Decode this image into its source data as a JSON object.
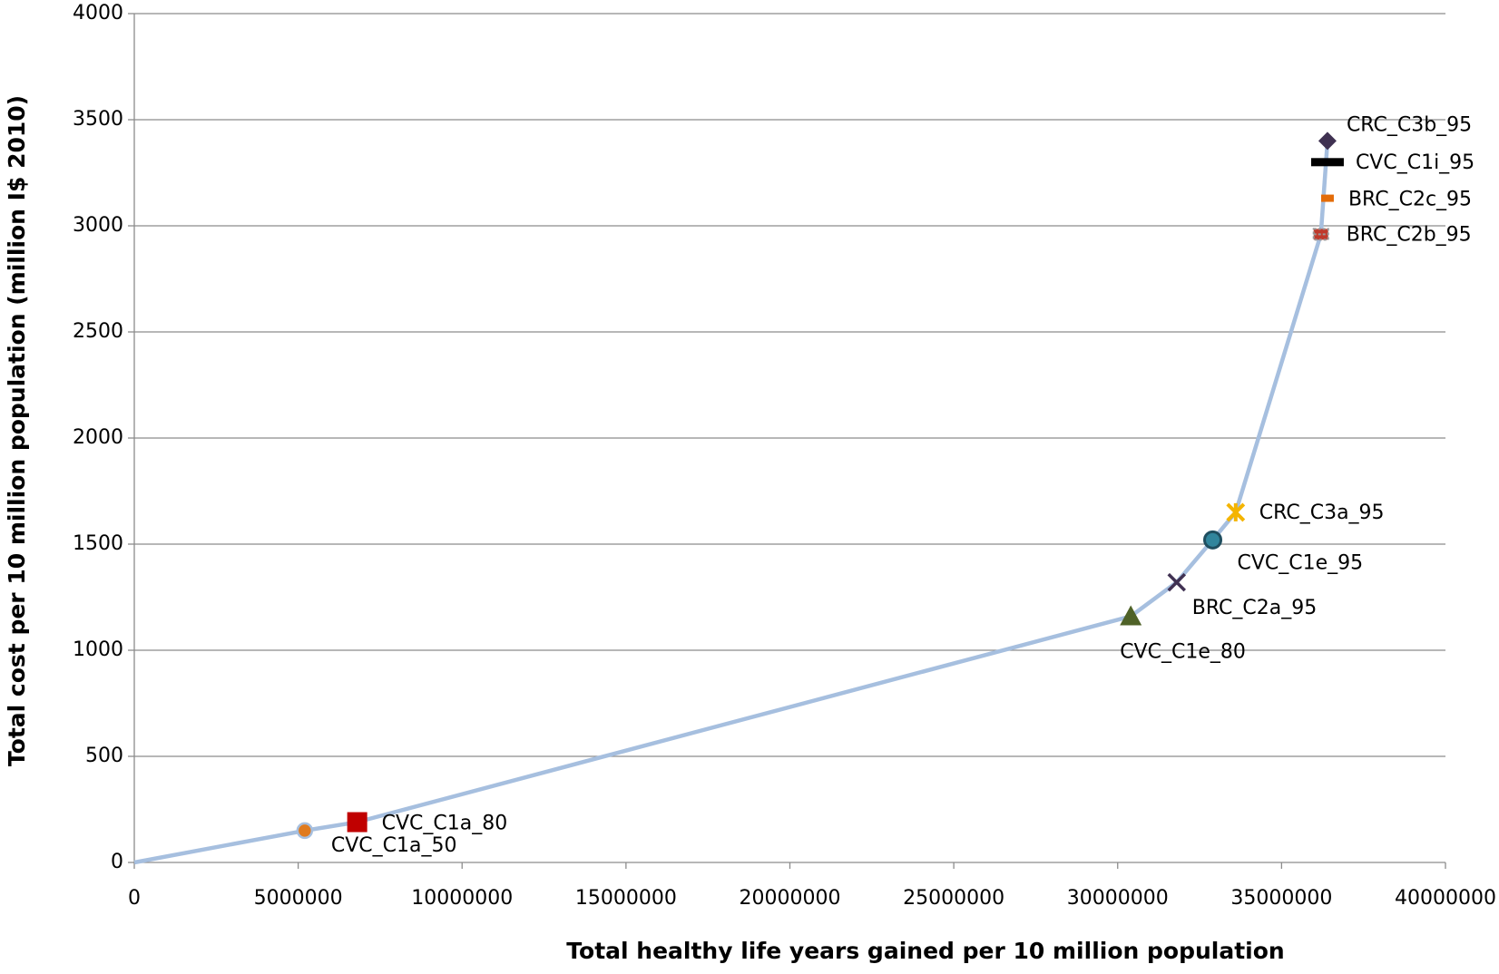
{
  "chart_data": {
    "type": "scatter",
    "x_label": "Total healthy life years gained per 10 million population",
    "y_label": "Total cost per 10 million population (million I$ 2010)",
    "xlim": [
      0,
      40000000
    ],
    "ylim": [
      0,
      4000
    ],
    "xticks": [
      0,
      5000000,
      10000000,
      15000000,
      20000000,
      25000000,
      30000000,
      35000000,
      40000000
    ],
    "yticks": [
      0,
      500,
      1000,
      1500,
      2000,
      2500,
      3000,
      3500,
      4000
    ],
    "grid": true,
    "line": {
      "color": "#a6bfdf",
      "x": [
        0,
        5200000,
        6800000,
        30400000,
        31800000,
        32900000,
        33600000,
        36200000,
        36400000
      ],
      "values": [
        0,
        150,
        190,
        1160,
        1320,
        1520,
        1650,
        2960,
        3400
      ]
    },
    "series": [
      {
        "name": "CVC_C1a_50",
        "marker": "circle",
        "color": "#e07b1f",
        "x": [
          5200000
        ],
        "values": [
          150
        ]
      },
      {
        "name": "CVC_C1a_80",
        "marker": "square",
        "color": "#c00000",
        "x": [
          6800000
        ],
        "values": [
          190
        ]
      },
      {
        "name": "CVC_C1e_80",
        "marker": "triangle",
        "color": "#4f6228",
        "x": [
          30400000
        ],
        "values": [
          1160
        ]
      },
      {
        "name": "BRC_C2a_95",
        "marker": "x",
        "color": "#403152",
        "x": [
          31800000
        ],
        "values": [
          1320
        ]
      },
      {
        "name": "CVC_C1e_95",
        "marker": "ring",
        "color": "#31859c",
        "x": [
          32900000
        ],
        "values": [
          1520
        ]
      },
      {
        "name": "CRC_C3a_95",
        "marker": "star",
        "color": "#f4b400",
        "x": [
          33600000
        ],
        "values": [
          1650
        ]
      },
      {
        "name": "BRC_C2b_95",
        "marker": "smallsquare",
        "color": "#c0392b",
        "x": [
          36200000
        ],
        "values": [
          2960
        ]
      },
      {
        "name": "BRC_C2c_95",
        "marker": "dash",
        "color": "#e36c09",
        "x": [
          36400000
        ],
        "values": [
          3130
        ]
      },
      {
        "name": "CVC_C1i_95",
        "marker": "bar",
        "color": "#000000",
        "x": [
          36400000
        ],
        "values": [
          3300
        ]
      },
      {
        "name": "CRC_C3b_95",
        "marker": "diamond",
        "color": "#3f3151",
        "x": [
          36400000
        ],
        "values": [
          3400
        ]
      }
    ]
  }
}
